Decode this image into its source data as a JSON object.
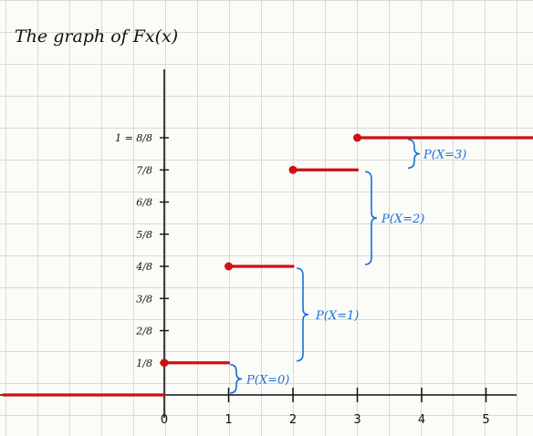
{
  "chart_data": {
    "type": "line",
    "title": "The graph of Fx(x)",
    "xlabel": "",
    "ylabel": "",
    "xlim": [
      -2.5,
      5.8
    ],
    "ylim": [
      0,
      1.25
    ],
    "x_ticks": [
      {
        "value": 0,
        "label": "0"
      },
      {
        "value": 1,
        "label": "1"
      },
      {
        "value": 2,
        "label": "2"
      },
      {
        "value": 3,
        "label": "3"
      },
      {
        "value": 4,
        "label": "4"
      },
      {
        "value": 5,
        "label": "5"
      }
    ],
    "y_ticks": [
      {
        "value": 0.125,
        "label": "1/8"
      },
      {
        "value": 0.25,
        "label": "2/8"
      },
      {
        "value": 0.375,
        "label": "3/8"
      },
      {
        "value": 0.5,
        "label": "4/8"
      },
      {
        "value": 0.625,
        "label": "5/8"
      },
      {
        "value": 0.75,
        "label": "6/8"
      },
      {
        "value": 0.875,
        "label": "7/8"
      },
      {
        "value": 1.0,
        "label": "1 = 8/8"
      }
    ],
    "steps": [
      {
        "x_start": -2.5,
        "x_end": 0,
        "y": 0,
        "closed_dot": false
      },
      {
        "x_start": 0,
        "x_end": 1,
        "y": 0.125,
        "closed_dot": true
      },
      {
        "x_start": 1,
        "x_end": 2,
        "y": 0.5,
        "closed_dot": true
      },
      {
        "x_start": 2,
        "x_end": 3,
        "y": 0.875,
        "closed_dot": true
      },
      {
        "x_start": 3,
        "x_end": 5.8,
        "y": 1.0,
        "closed_dot": true
      }
    ],
    "jump_annotations": [
      {
        "x": 0,
        "y_low": 0,
        "y_high": 0.125,
        "label": "P(X=0)"
      },
      {
        "x": 1,
        "y_low": 0.125,
        "y_high": 0.5,
        "label": "P(X=1)"
      },
      {
        "x": 2,
        "y_low": 0.5,
        "y_high": 0.875,
        "label": "P(X=2)"
      },
      {
        "x": 3,
        "y_low": 0.875,
        "y_high": 1.0,
        "label": "P(X=3)"
      }
    ],
    "colors": {
      "line": "#cc1111",
      "axis": "#111111",
      "annotation": "#1a6fd8",
      "grid": "#d9d9d4"
    }
  }
}
